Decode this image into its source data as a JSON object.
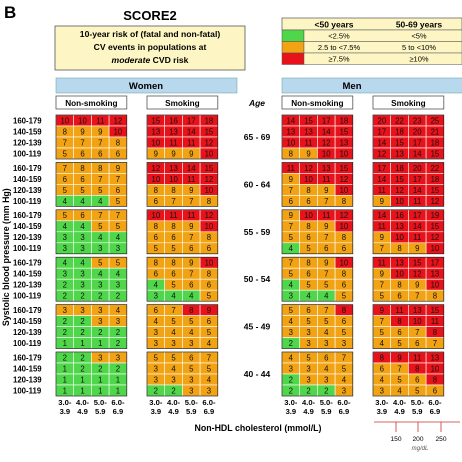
{
  "panel_letter": "B",
  "title": "SCORE2",
  "subtitle_lines": [
    "10-year risk of (fatal and non-fatal)",
    "CV events in populations at"
  ],
  "subtitle_italic": "moderate",
  "subtitle_tail": "CVD risk",
  "legend": {
    "headers": [
      "<50 years",
      "50-69 years"
    ],
    "rows": [
      {
        "color": "#4fd64a",
        "col1": "<2.5%",
        "col2": "<5%"
      },
      {
        "color": "#f2a313",
        "col1": "2.5 to <7.5%",
        "col2": "5 to <10%"
      },
      {
        "color": "#e8121a",
        "col1": "≥7.5%",
        "col2": "≥10%"
      }
    ]
  },
  "colors": {
    "green": "#4fd64a",
    "orange": "#f2a313",
    "red": "#e8121a",
    "header_blue": "#b8d8ee",
    "legend_bg": "#fdf6c4"
  },
  "chart_data": {
    "type": "heatmap",
    "title": "SCORE2",
    "sex_labels": [
      "Women",
      "Men"
    ],
    "smoking_labels": [
      "Non-smoking",
      "Smoking"
    ],
    "age_header": "Age",
    "age_groups": [
      "65 - 69",
      "60 - 64",
      "55 - 59",
      "50 - 54",
      "45 - 49",
      "40 - 44"
    ],
    "sbp_rows": [
      "160-179",
      "140-159",
      "120-139",
      "100-119"
    ],
    "cholesterol_cols": [
      "3.0-\n3.9",
      "4.0-\n4.9",
      "5.0-\n5.9",
      "6.0-\n6.9"
    ],
    "ylabel": "Systolic blood pressure (mm Hg)",
    "xlabel": "Non-HDL cholesterol (mmol/L)",
    "mgdl_ticks": [
      "150",
      "200",
      "250"
    ],
    "mgdl_label": "mg/dL",
    "grid": {
      "women_nonsmoking": [
        [
          [
            10,
            10,
            11,
            12
          ],
          [
            8,
            9,
            9,
            10
          ],
          [
            7,
            7,
            7,
            8
          ],
          [
            5,
            6,
            6,
            6
          ]
        ],
        [
          [
            7,
            8,
            8,
            9
          ],
          [
            6,
            6,
            7,
            7
          ],
          [
            5,
            5,
            5,
            6
          ],
          [
            4,
            4,
            4,
            5
          ]
        ],
        [
          [
            5,
            6,
            7,
            7
          ],
          [
            4,
            4,
            5,
            5
          ],
          [
            3,
            3,
            4,
            4
          ],
          [
            3,
            3,
            3,
            3
          ]
        ],
        [
          [
            4,
            4,
            5,
            5
          ],
          [
            3,
            3,
            4,
            4
          ],
          [
            2,
            3,
            3,
            3
          ],
          [
            2,
            2,
            2,
            2
          ]
        ],
        [
          [
            3,
            3,
            3,
            4
          ],
          [
            2,
            2,
            3,
            3
          ],
          [
            2,
            2,
            2,
            2
          ],
          [
            1,
            1,
            1,
            2
          ]
        ],
        [
          [
            2,
            2,
            3,
            3
          ],
          [
            1,
            2,
            2,
            2
          ],
          [
            1,
            1,
            1,
            1
          ],
          [
            1,
            1,
            1,
            1
          ]
        ]
      ],
      "women_smoking": [
        [
          [
            15,
            16,
            17,
            18
          ],
          [
            13,
            13,
            14,
            15
          ],
          [
            10,
            11,
            11,
            12
          ],
          [
            9,
            9,
            9,
            10
          ]
        ],
        [
          [
            12,
            13,
            14,
            15
          ],
          [
            10,
            10,
            11,
            12
          ],
          [
            8,
            8,
            9,
            10
          ],
          [
            6,
            7,
            7,
            8
          ]
        ],
        [
          [
            10,
            11,
            11,
            12
          ],
          [
            8,
            8,
            9,
            10
          ],
          [
            6,
            6,
            7,
            8
          ],
          [
            5,
            5,
            6,
            6
          ]
        ],
        [
          [
            8,
            8,
            9,
            10
          ],
          [
            6,
            6,
            7,
            8
          ],
          [
            4,
            5,
            6,
            6
          ],
          [
            3,
            4,
            4,
            5
          ]
        ],
        [
          [
            6,
            7,
            8,
            9
          ],
          [
            4,
            5,
            5,
            6
          ],
          [
            3,
            4,
            4,
            5
          ],
          [
            3,
            3,
            3,
            4
          ]
        ],
        [
          [
            5,
            5,
            6,
            7
          ],
          [
            3,
            4,
            5,
            5
          ],
          [
            3,
            3,
            3,
            4
          ],
          [
            2,
            2,
            3,
            3
          ]
        ]
      ],
      "men_nonsmoking": [
        [
          [
            14,
            15,
            17,
            18
          ],
          [
            13,
            13,
            14,
            15
          ],
          [
            10,
            11,
            12,
            13
          ],
          [
            8,
            9,
            10,
            10
          ]
        ],
        [
          [
            11,
            12,
            13,
            15
          ],
          [
            9,
            10,
            11,
            12
          ],
          [
            7,
            8,
            9,
            10
          ],
          [
            6,
            6,
            7,
            8
          ]
        ],
        [
          [
            9,
            10,
            11,
            12
          ],
          [
            7,
            8,
            9,
            10
          ],
          [
            5,
            6,
            7,
            8
          ],
          [
            4,
            5,
            6,
            6
          ]
        ],
        [
          [
            7,
            8,
            9,
            10
          ],
          [
            5,
            6,
            7,
            8
          ],
          [
            4,
            5,
            5,
            6
          ],
          [
            3,
            4,
            4,
            5
          ]
        ],
        [
          [
            5,
            6,
            7,
            8
          ],
          [
            4,
            5,
            5,
            6
          ],
          [
            3,
            3,
            4,
            5
          ],
          [
            2,
            3,
            3,
            3
          ]
        ],
        [
          [
            4,
            5,
            6,
            7
          ],
          [
            3,
            3,
            4,
            5
          ],
          [
            2,
            3,
            3,
            4
          ],
          [
            2,
            2,
            2,
            3
          ]
        ]
      ],
      "men_smoking": [
        [
          [
            20,
            22,
            23,
            25
          ],
          [
            17,
            18,
            20,
            21
          ],
          [
            14,
            15,
            17,
            18
          ],
          [
            12,
            13,
            14,
            15
          ]
        ],
        [
          [
            17,
            18,
            20,
            22
          ],
          [
            14,
            15,
            17,
            18
          ],
          [
            11,
            12,
            14,
            15
          ],
          [
            9,
            10,
            11,
            12
          ]
        ],
        [
          [
            14,
            16,
            17,
            19
          ],
          [
            11,
            13,
            14,
            15
          ],
          [
            9,
            10,
            11,
            12
          ],
          [
            7,
            8,
            9,
            10
          ]
        ],
        [
          [
            11,
            13,
            15,
            17
          ],
          [
            9,
            10,
            12,
            13
          ],
          [
            7,
            8,
            9,
            10
          ],
          [
            5,
            6,
            7,
            8
          ]
        ],
        [
          [
            9,
            11,
            13,
            15
          ],
          [
            7,
            8,
            10,
            11
          ],
          [
            5,
            6,
            7,
            8
          ],
          [
            4,
            5,
            6,
            7
          ]
        ],
        [
          [
            8,
            9,
            11,
            13
          ],
          [
            6,
            7,
            8,
            10
          ],
          [
            4,
            5,
            6,
            8
          ],
          [
            3,
            4,
            5,
            6
          ]
        ]
      ]
    }
  }
}
